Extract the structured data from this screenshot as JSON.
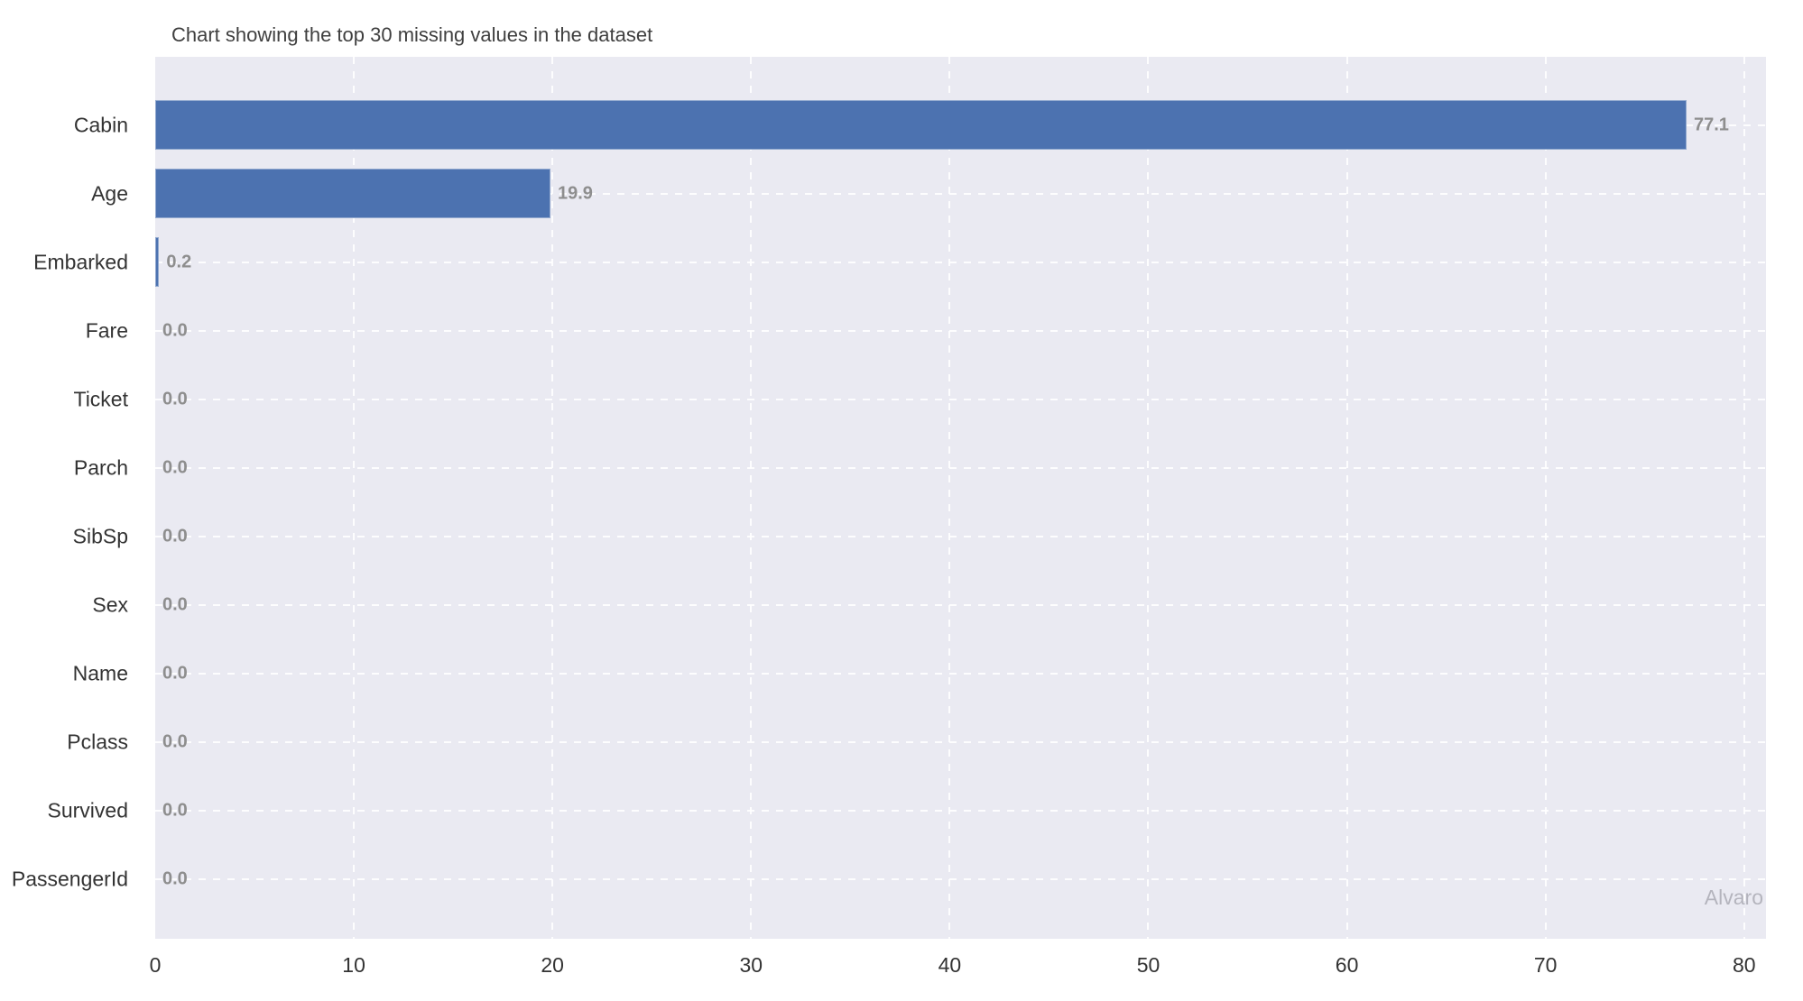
{
  "chart_data": {
    "type": "bar",
    "orientation": "horizontal",
    "title": "Chart showing the top 30 missing values in the dataset",
    "categories": [
      "Cabin",
      "Age",
      "Embarked",
      "Fare",
      "Ticket",
      "Parch",
      "SibSp",
      "Sex",
      "Name",
      "Pclass",
      "Survived",
      "PassengerId"
    ],
    "values": [
      77.1,
      19.9,
      0.2,
      0.0,
      0.0,
      0.0,
      0.0,
      0.0,
      0.0,
      0.0,
      0.0,
      0.0
    ],
    "value_labels": [
      "77.1",
      "19.9",
      "0.2",
      "0.0",
      "0.0",
      "0.0",
      "0.0",
      "0.0",
      "0.0",
      "0.0",
      "0.0",
      "0.0"
    ],
    "xlabel": "",
    "ylabel": "",
    "xticks": [
      0,
      10,
      20,
      30,
      40,
      50,
      60,
      70,
      80
    ],
    "xtick_labels": [
      "0",
      "10",
      "20",
      "30",
      "40",
      "50",
      "60",
      "70",
      "80"
    ],
    "xlim": [
      0,
      81.1
    ],
    "grid": "dashed white gridlines on both axes, below bars",
    "legend": null,
    "watermark": "Alvaro",
    "colors": {
      "bar": "#4c72b0",
      "plot_background": "#eaeaf2",
      "gridline": "rgba(255,255,255,0.9)",
      "title_text": "#3f3f3f",
      "axis_text": "#333333",
      "value_text": "#8e8e8e",
      "watermark_text": "#b4b4bd",
      "page_background": "#ffffff"
    }
  }
}
